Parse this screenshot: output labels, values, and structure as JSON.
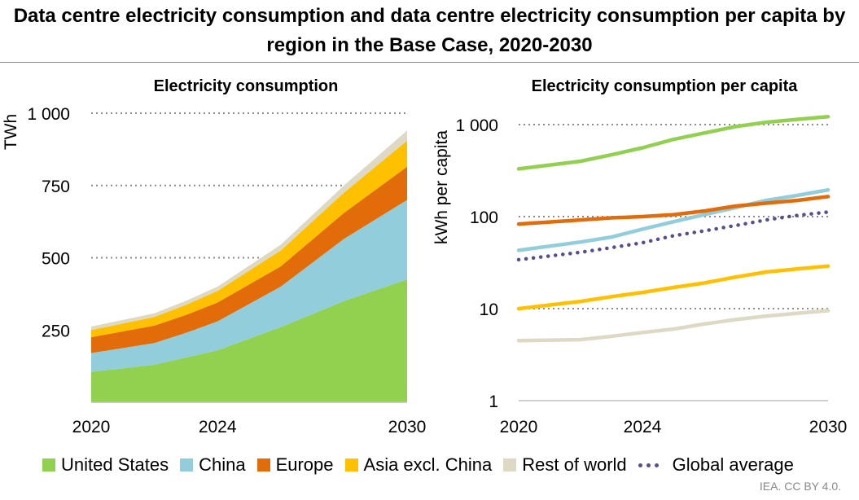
{
  "title": "Data centre electricity consumption and data centre electricity consumption per capita by region in the Base Case, 2020-2030",
  "source": "IEA. CC BY 4.0.",
  "legend": [
    {
      "label": "United States",
      "color": "#92d050"
    },
    {
      "label": "China",
      "color": "#92cddc"
    },
    {
      "label": "Europe",
      "color": "#e26b0a"
    },
    {
      "label": "Asia excl. China",
      "color": "#ffc000"
    },
    {
      "label": "Rest of world",
      "color": "#ddd9c4"
    },
    {
      "label": "Global average",
      "color": "#5b4c8c"
    }
  ],
  "chart_data": [
    {
      "type": "area",
      "stacked": true,
      "title": "Electricity consumption",
      "ylabel": "TWh",
      "xlabel": "",
      "x": [
        2020,
        2022,
        2023,
        2024,
        2026,
        2028,
        2030
      ],
      "xticks": [
        "2020",
        "2024",
        "2030"
      ],
      "yticks": [
        250,
        500,
        750,
        1000
      ],
      "ytick_labels": [
        "250",
        "500",
        "750",
        "1 000"
      ],
      "ylim": [
        0,
        1000
      ],
      "grid": "horizontal dotted",
      "series": [
        {
          "name": "United States",
          "color": "#92d050",
          "values": [
            105,
            130,
            155,
            180,
            260,
            350,
            425
          ]
        },
        {
          "name": "China",
          "color": "#92cddc",
          "values": [
            65,
            75,
            85,
            100,
            140,
            215,
            275
          ]
        },
        {
          "name": "Europe",
          "color": "#e26b0a",
          "values": [
            55,
            60,
            62,
            65,
            70,
            90,
            115
          ]
        },
        {
          "name": "Asia excl. China",
          "color": "#ffc000",
          "values": [
            25,
            30,
            35,
            40,
            55,
            70,
            90
          ]
        },
        {
          "name": "Rest of world",
          "color": "#ddd9c4",
          "values": [
            12,
            13,
            14,
            15,
            20,
            25,
            35
          ]
        }
      ]
    },
    {
      "type": "line",
      "title": "Electricity consumption per capita",
      "ylabel": "kWh per capita",
      "xlabel": "",
      "yscale": "log",
      "x": [
        2020,
        2022,
        2023,
        2024,
        2025,
        2026,
        2027,
        2028,
        2029,
        2030
      ],
      "xticks": [
        "2020",
        "2024",
        "2030"
      ],
      "yticks": [
        1,
        10,
        100,
        1000
      ],
      "ytick_labels": [
        "1",
        "10",
        "100",
        "1 000"
      ],
      "ylim": [
        1,
        1000
      ],
      "grid": "horizontal dotted",
      "series": [
        {
          "name": "United States",
          "color": "#92d050",
          "values": [
            330,
            400,
            470,
            560,
            690,
            810,
            950,
            1060,
            1140,
            1220
          ]
        },
        {
          "name": "China",
          "color": "#92cddc",
          "values": [
            43,
            53,
            60,
            73,
            88,
            105,
            125,
            150,
            170,
            195
          ]
        },
        {
          "name": "Europe",
          "color": "#e26b0a",
          "values": [
            83,
            92,
            97,
            100,
            105,
            115,
            130,
            140,
            150,
            165
          ]
        },
        {
          "name": "Asia excl. China",
          "color": "#ffc000",
          "values": [
            10,
            12,
            13.5,
            15,
            17,
            19,
            22,
            25,
            27,
            29
          ]
        },
        {
          "name": "Rest of world",
          "color": "#ddd9c4",
          "values": [
            4.5,
            4.6,
            5,
            5.5,
            6,
            6.8,
            7.6,
            8.3,
            8.9,
            9.5
          ]
        },
        {
          "name": "Global average",
          "color": "#5b4c8c",
          "values": [
            34,
            41,
            46,
            52,
            62,
            70,
            80,
            92,
            103,
            112
          ]
        }
      ]
    }
  ]
}
